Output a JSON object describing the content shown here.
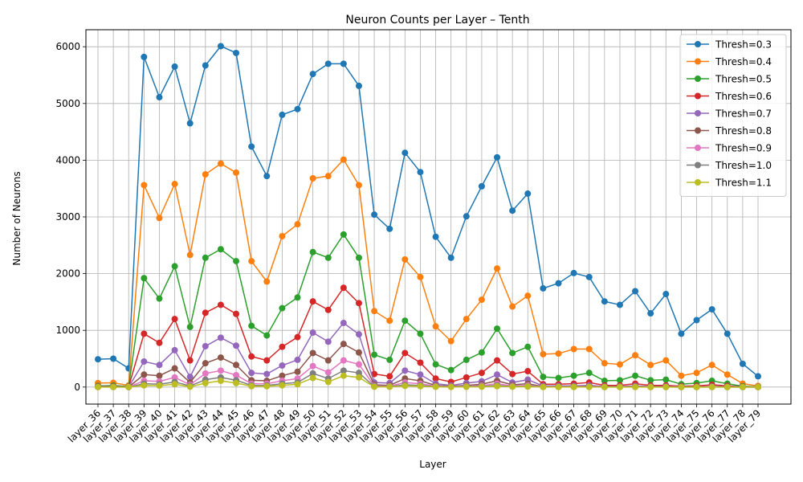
{
  "chart_data": {
    "type": "line",
    "title": "Neuron Counts per Layer – Tenth",
    "xlabel": "Layer",
    "ylabel": "Number of Neurons",
    "ylim": [
      -300,
      6300
    ],
    "yticks": [
      0,
      1000,
      2000,
      3000,
      4000,
      5000,
      6000
    ],
    "grid": true,
    "legend_position": "top-right",
    "categories": [
      "layer_36",
      "layer_37",
      "layer_38",
      "layer_39",
      "layer_40",
      "layer_41",
      "layer_42",
      "layer_43",
      "layer_44",
      "layer_45",
      "layer_46",
      "layer_47",
      "layer_48",
      "layer_49",
      "layer_50",
      "layer_51",
      "layer_52",
      "layer_53",
      "layer_54",
      "layer_55",
      "layer_56",
      "layer_57",
      "layer_58",
      "layer_59",
      "layer_60",
      "layer_61",
      "layer_62",
      "layer_63",
      "layer_64",
      "layer_65",
      "layer_66",
      "layer_67",
      "layer_68",
      "layer_69",
      "layer_70",
      "layer_71",
      "layer_72",
      "layer_73",
      "layer_74",
      "layer_75",
      "layer_76",
      "layer_77",
      "layer_78",
      "layer_79"
    ],
    "series": [
      {
        "name": "Thresh=0.3",
        "color": "#1f77b4",
        "values": [
          490,
          500,
          330,
          5820,
          5110,
          5650,
          4650,
          5670,
          6010,
          5890,
          4240,
          3720,
          4800,
          4900,
          5520,
          5700,
          5700,
          5310,
          3040,
          2790,
          4130,
          3790,
          2650,
          2280,
          3010,
          3540,
          4050,
          3110,
          3410,
          1740,
          1830,
          2010,
          1940,
          1510,
          1450,
          1690,
          1300,
          1640,
          940,
          1180,
          1370,
          940,
          410,
          190
        ]
      },
      {
        "name": "Thresh=0.4",
        "color": "#ff7f0e",
        "values": [
          70,
          75,
          30,
          3560,
          2980,
          3580,
          2330,
          3750,
          3940,
          3780,
          2220,
          1860,
          2660,
          2870,
          3680,
          3720,
          4010,
          3560,
          1340,
          1170,
          2250,
          1940,
          1070,
          810,
          1200,
          1540,
          2090,
          1420,
          1610,
          580,
          590,
          670,
          670,
          420,
          400,
          560,
          390,
          470,
          200,
          250,
          390,
          220,
          60,
          20
        ]
      },
      {
        "name": "Thresh=0.5",
        "color": "#2ca02c",
        "values": [
          20,
          25,
          10,
          1920,
          1560,
          2130,
          1060,
          2280,
          2430,
          2220,
          1080,
          910,
          1390,
          1580,
          2380,
          2280,
          2690,
          2280,
          570,
          480,
          1170,
          940,
          400,
          300,
          480,
          610,
          1030,
          600,
          710,
          180,
          160,
          200,
          250,
          110,
          120,
          200,
          120,
          130,
          50,
          70,
          110,
          60,
          15,
          5
        ]
      },
      {
        "name": "Thresh=0.6",
        "color": "#d62728",
        "values": [
          10,
          10,
          5,
          940,
          780,
          1200,
          470,
          1310,
          1450,
          1290,
          540,
          470,
          710,
          880,
          1510,
          1360,
          1750,
          1480,
          230,
          190,
          600,
          430,
          150,
          90,
          170,
          250,
          470,
          230,
          280,
          50,
          50,
          60,
          80,
          30,
          30,
          60,
          30,
          30,
          15,
          20,
          40,
          20,
          5,
          2
        ]
      },
      {
        "name": "Thresh=0.7",
        "color": "#9467bd",
        "values": [
          5,
          5,
          2,
          450,
          390,
          650,
          180,
          720,
          870,
          730,
          250,
          230,
          380,
          480,
          960,
          800,
          1130,
          930,
          80,
          70,
          290,
          220,
          60,
          30,
          70,
          100,
          220,
          80,
          130,
          20,
          20,
          20,
          30,
          10,
          10,
          20,
          10,
          10,
          5,
          5,
          10,
          5,
          2,
          1
        ]
      },
      {
        "name": "Thresh=0.8",
        "color": "#8c564b",
        "values": [
          3,
          3,
          1,
          220,
          200,
          330,
          80,
          420,
          520,
          390,
          120,
          110,
          200,
          270,
          600,
          470,
          760,
          610,
          40,
          30,
          150,
          110,
          30,
          15,
          30,
          50,
          110,
          40,
          60,
          8,
          8,
          10,
          12,
          4,
          4,
          8,
          4,
          4,
          2,
          2,
          4,
          2,
          1,
          0
        ]
      },
      {
        "name": "Thresh=0.9",
        "color": "#e377c2",
        "values": [
          2,
          2,
          1,
          110,
          100,
          170,
          40,
          240,
          290,
          210,
          60,
          60,
          110,
          150,
          370,
          260,
          470,
          400,
          20,
          15,
          80,
          60,
          15,
          8,
          15,
          25,
          60,
          20,
          30,
          4,
          4,
          5,
          6,
          2,
          2,
          4,
          2,
          2,
          1,
          1,
          2,
          1,
          0,
          0
        ]
      },
      {
        "name": "Thresh=1.0",
        "color": "#7f7f7f",
        "values": [
          1,
          1,
          0,
          60,
          50,
          90,
          20,
          130,
          170,
          120,
          30,
          30,
          60,
          80,
          240,
          150,
          290,
          250,
          10,
          8,
          40,
          30,
          8,
          4,
          8,
          12,
          30,
          10,
          15,
          2,
          2,
          2,
          3,
          1,
          1,
          2,
          1,
          1,
          0,
          0,
          1,
          0,
          0,
          0
        ]
      },
      {
        "name": "Thresh=1.1",
        "color": "#bcbd22",
        "values": [
          0,
          0,
          0,
          30,
          25,
          50,
          5,
          70,
          110,
          70,
          15,
          15,
          30,
          50,
          160,
          90,
          200,
          170,
          5,
          4,
          20,
          15,
          4,
          2,
          4,
          6,
          15,
          5,
          8,
          1,
          1,
          1,
          2,
          0,
          0,
          1,
          0,
          0,
          0,
          0,
          0,
          0,
          0,
          0
        ]
      }
    ]
  }
}
